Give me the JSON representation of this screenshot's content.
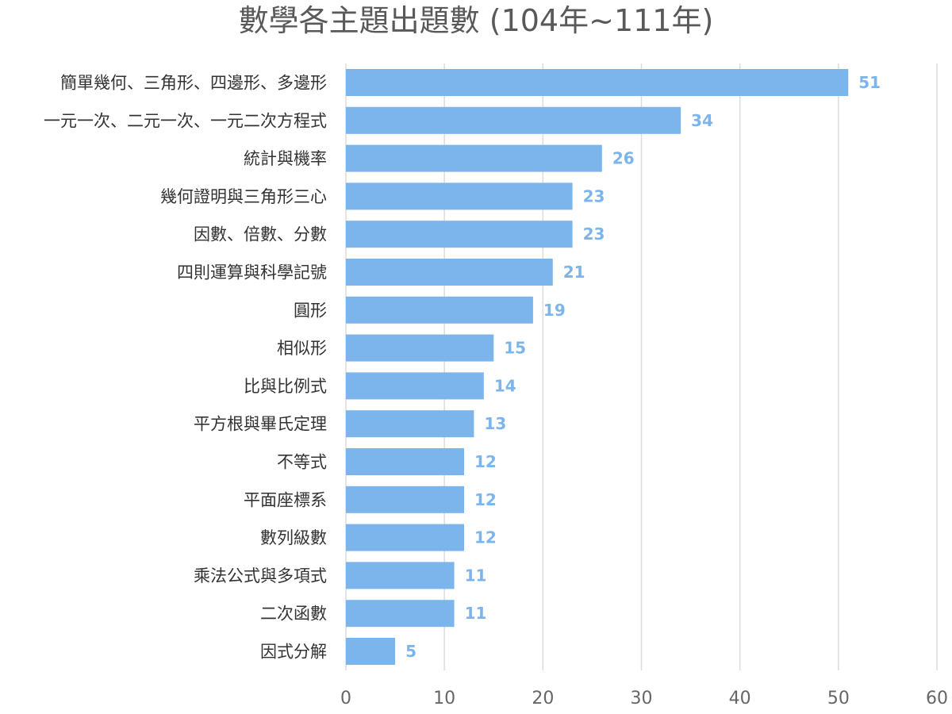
{
  "chart_data": {
    "type": "bar",
    "orientation": "horizontal",
    "title": "數學各主題出題數 (104年~111年)",
    "categories": [
      "簡單幾何、三角形、四邊形、多邊形",
      "一元一次、二元一次、一元二次方程式",
      "統計與機率",
      "幾何證明與三角形三心",
      "因數、倍數、分數",
      "四則運算與科學記號",
      "圓形",
      "相似形",
      "比與比例式",
      "平方根與畢氏定理",
      "不等式",
      "平面座標系",
      "數列級數",
      "乘法公式與多項式",
      "二次函數",
      "因式分解"
    ],
    "values": [
      51,
      34,
      26,
      23,
      23,
      21,
      19,
      15,
      14,
      13,
      12,
      12,
      12,
      11,
      11,
      5
    ],
    "xlim": [
      0,
      60
    ],
    "xticks": [
      0,
      10,
      20,
      30,
      40,
      50,
      60
    ],
    "grid": "vertical",
    "data_labels": true,
    "colors": {
      "bar": "#7cb5ec",
      "label": "#7cb5ec",
      "grid": "#dcdcdc"
    }
  }
}
